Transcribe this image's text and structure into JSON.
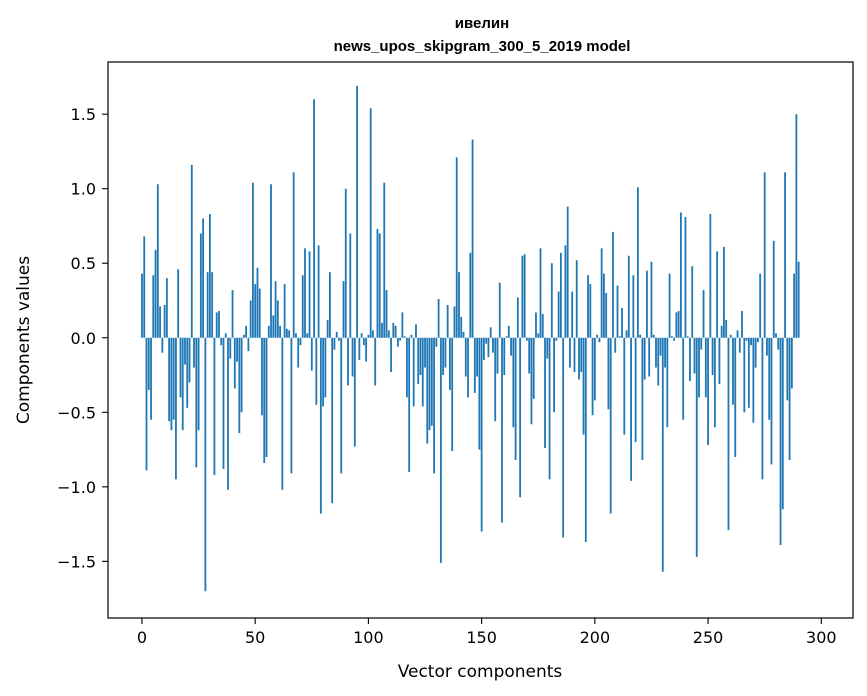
{
  "chart_data": {
    "type": "bar",
    "title_line1": "ивелин",
    "title_line2": "news_upos_skipgram_300_5_2019 model",
    "xlabel": "Vector components",
    "ylabel": "Components values",
    "xlim": [
      -15,
      314
    ],
    "ylim": [
      -1.88,
      1.85
    ],
    "xticks": [
      0,
      50,
      100,
      150,
      200,
      250,
      300
    ],
    "yticks": [
      -1.5,
      -1.0,
      -0.5,
      0.0,
      0.5,
      1.0,
      1.5
    ],
    "ytick_labels": [
      "−1.5",
      "−1.0",
      "−0.5",
      "0.0",
      "0.5",
      "1.0",
      "1.5"
    ],
    "bar_color": "#1f77b4",
    "values": [
      0.43,
      0.68,
      -0.89,
      -0.35,
      -0.55,
      0.42,
      0.59,
      1.03,
      0.21,
      -0.1,
      0.22,
      0.4,
      -0.56,
      -0.62,
      -0.55,
      -0.95,
      0.46,
      -0.4,
      -0.62,
      -0.18,
      -0.47,
      -0.3,
      1.16,
      -0.2,
      -0.87,
      -0.62,
      0.7,
      0.8,
      -1.7,
      0.44,
      0.83,
      0.44,
      -0.92,
      0.17,
      0.18,
      -0.05,
      -0.88,
      0.03,
      -1.02,
      -0.14,
      0.32,
      -0.34,
      -0.16,
      -0.64,
      -0.5,
      0.02,
      0.08,
      -0.09,
      0.25,
      1.04,
      0.36,
      0.47,
      0.33,
      -0.52,
      -0.84,
      -0.8,
      0.08,
      1.03,
      0.15,
      0.38,
      0.25,
      0.08,
      -1.02,
      0.36,
      0.06,
      0.05,
      -0.91,
      1.11,
      0.03,
      -0.2,
      -0.05,
      0.42,
      0.6,
      0.03,
      0.58,
      -0.22,
      1.6,
      -0.45,
      0.62,
      -1.18,
      -0.46,
      -0.4,
      0.12,
      0.44,
      -1.11,
      -0.08,
      0.04,
      -0.02,
      -0.91,
      0.38,
      1.0,
      -0.32,
      0.7,
      -0.26,
      -0.73,
      1.69,
      -0.15,
      0.03,
      -0.05,
      -0.16,
      0.02,
      1.54,
      0.05,
      -0.32,
      0.73,
      0.7,
      0.1,
      1.04,
      0.32,
      0.05,
      -0.23,
      0.1,
      0.08,
      -0.06,
      -0.02,
      0.17,
      0.01,
      -0.4,
      -0.9,
      0.02,
      -0.46,
      0.09,
      -0.31,
      -0.25,
      -0.46,
      -0.2,
      -0.71,
      -0.62,
      -0.59,
      -0.91,
      -0.06,
      0.26,
      -1.51,
      -0.25,
      -0.2,
      0.22,
      -0.35,
      -0.76,
      0.21,
      1.21,
      0.44,
      0.14,
      0.04,
      -0.26,
      -0.4,
      0.57,
      1.33,
      -0.37,
      -0.26,
      -0.75,
      -1.3,
      -0.15,
      -0.04,
      -0.13,
      0.07,
      -0.1,
      -0.56,
      -0.24,
      0.37,
      -1.24,
      -0.25,
      0.01,
      0.08,
      -0.12,
      -0.6,
      -0.82,
      0.27,
      -1.07,
      0.55,
      0.56,
      -0.02,
      -0.24,
      -0.58,
      -0.41,
      0.17,
      0.03,
      0.6,
      0.16,
      -0.74,
      -0.14,
      -0.95,
      0.5,
      -0.5,
      -0.02,
      0.31,
      0.57,
      -1.34,
      0.62,
      0.88,
      -0.2,
      0.31,
      -0.23,
      0.52,
      -0.28,
      -0.23,
      -0.65,
      -1.37,
      0.42,
      0.36,
      -0.52,
      -0.42,
      0.02,
      -0.03,
      0.6,
      0.43,
      0.3,
      -0.48,
      -1.18,
      0.71,
      -0.1,
      0.35,
      0.01,
      0.2,
      -0.65,
      0.05,
      0.55,
      -0.96,
      0.42,
      -0.7,
      1.01,
      0.02,
      -0.82,
      -0.28,
      0.45,
      -0.26,
      0.51,
      0.02,
      -0.2,
      -0.32,
      -0.12,
      -1.57,
      -0.2,
      -0.6,
      0.43,
      0.01,
      -0.02,
      0.17,
      0.18,
      0.84,
      -0.55,
      0.81,
      0.01,
      -0.29,
      0.48,
      -0.24,
      -1.47,
      -0.4,
      -0.08,
      0.32,
      -0.4,
      -0.72,
      0.83,
      -0.25,
      -0.6,
      0.58,
      -0.31,
      0.08,
      0.61,
      0.12,
      -1.29,
      0.02,
      -0.45,
      -0.8,
      0.05,
      -0.1,
      0.18,
      -0.5,
      -0.02,
      -0.47,
      -0.05,
      -0.57,
      -0.2,
      -0.03,
      0.43,
      -0.95,
      1.11,
      -0.12,
      -0.55,
      -0.85,
      0.65,
      0.03,
      -0.08,
      -1.39,
      -1.15,
      1.11,
      -0.42,
      -0.82,
      -0.34,
      0.43,
      1.5,
      0.51
    ]
  }
}
